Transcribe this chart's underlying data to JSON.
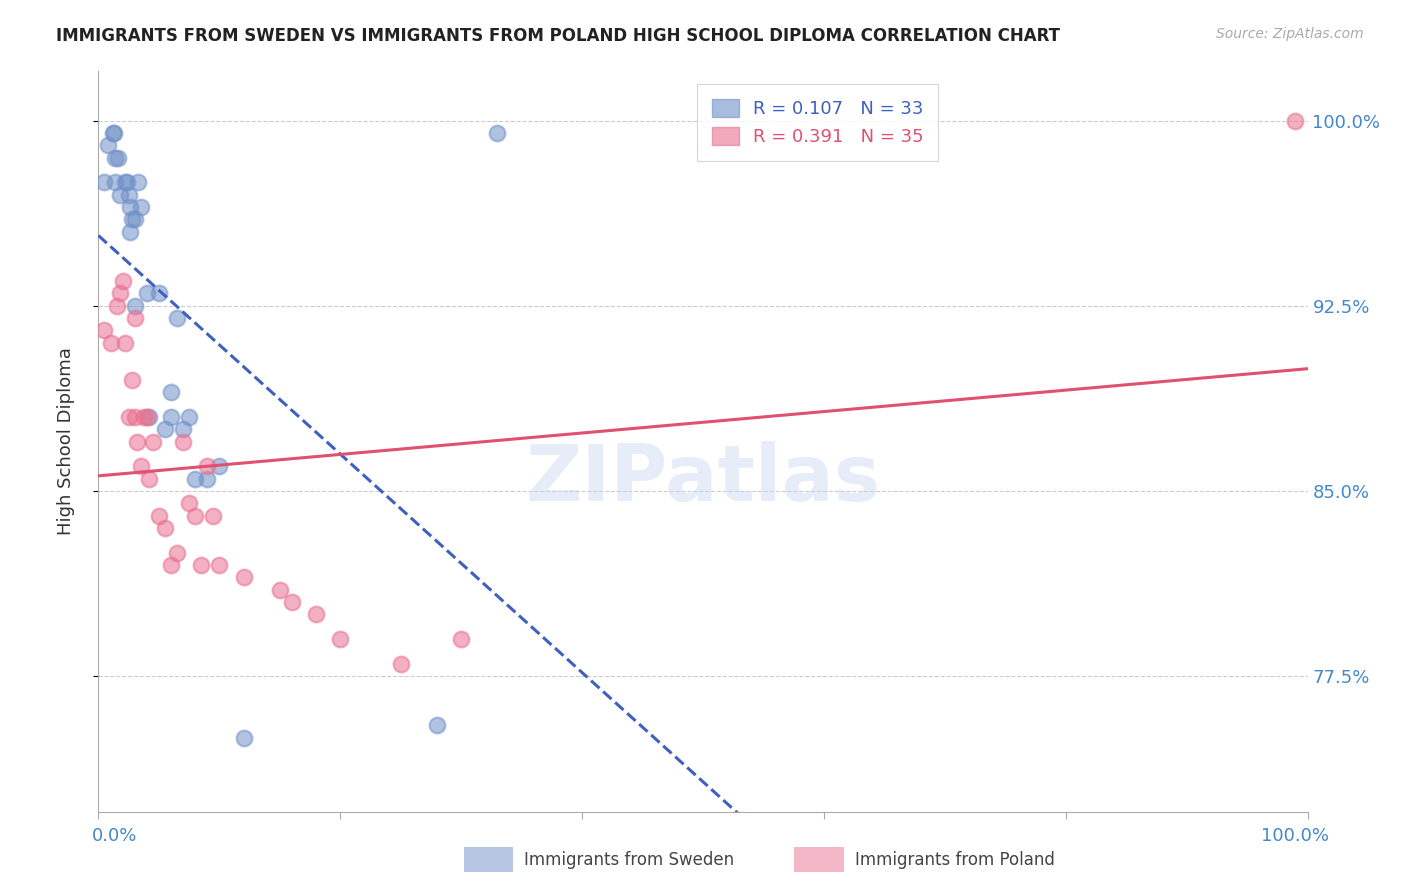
{
  "title": "IMMIGRANTS FROM SWEDEN VS IMMIGRANTS FROM POLAND HIGH SCHOOL DIPLOMA CORRELATION CHART",
  "source": "Source: ZipAtlas.com",
  "ylabel": "High School Diploma",
  "legend_sweden": {
    "R": 0.107,
    "N": 33,
    "label": "Immigrants from Sweden"
  },
  "legend_poland": {
    "R": 0.391,
    "N": 35,
    "label": "Immigrants from Poland"
  },
  "ytick_labels": [
    "100.0%",
    "92.5%",
    "85.0%",
    "77.5%"
  ],
  "ytick_values": [
    1.0,
    0.925,
    0.85,
    0.775
  ],
  "xlim": [
    0.0,
    1.0
  ],
  "ylim": [
    0.72,
    1.02
  ],
  "sweden_color": "#7090c8",
  "poland_color": "#e87090",
  "sweden_line_color": "#4060c0",
  "poland_line_color": "#e05070",
  "sweden_x": [
    0.005,
    0.008,
    0.012,
    0.013,
    0.014,
    0.014,
    0.016,
    0.018,
    0.022,
    0.024,
    0.025,
    0.026,
    0.026,
    0.028,
    0.03,
    0.03,
    0.033,
    0.035,
    0.04,
    0.042,
    0.05,
    0.055,
    0.06,
    0.06,
    0.065,
    0.07,
    0.075,
    0.08,
    0.09,
    0.1,
    0.12,
    0.28,
    0.33
  ],
  "sweden_y": [
    0.975,
    0.99,
    0.995,
    0.995,
    0.985,
    0.975,
    0.985,
    0.97,
    0.975,
    0.975,
    0.97,
    0.965,
    0.955,
    0.96,
    0.925,
    0.96,
    0.975,
    0.965,
    0.93,
    0.88,
    0.93,
    0.875,
    0.89,
    0.88,
    0.92,
    0.875,
    0.88,
    0.855,
    0.855,
    0.86,
    0.75,
    0.755,
    0.995
  ],
  "poland_x": [
    0.005,
    0.01,
    0.015,
    0.018,
    0.02,
    0.022,
    0.025,
    0.028,
    0.03,
    0.03,
    0.032,
    0.035,
    0.038,
    0.04,
    0.042,
    0.045,
    0.05,
    0.055,
    0.06,
    0.065,
    0.07,
    0.075,
    0.08,
    0.085,
    0.09,
    0.095,
    0.1,
    0.12,
    0.15,
    0.16,
    0.18,
    0.2,
    0.25,
    0.3,
    0.99
  ],
  "poland_y": [
    0.915,
    0.91,
    0.925,
    0.93,
    0.935,
    0.91,
    0.88,
    0.895,
    0.88,
    0.92,
    0.87,
    0.86,
    0.88,
    0.88,
    0.855,
    0.87,
    0.84,
    0.835,
    0.82,
    0.825,
    0.87,
    0.845,
    0.84,
    0.82,
    0.86,
    0.84,
    0.82,
    0.815,
    0.81,
    0.805,
    0.8,
    0.79,
    0.78,
    0.79,
    1.0
  ],
  "background_color": "#ffffff",
  "grid_color": "#cccccc"
}
